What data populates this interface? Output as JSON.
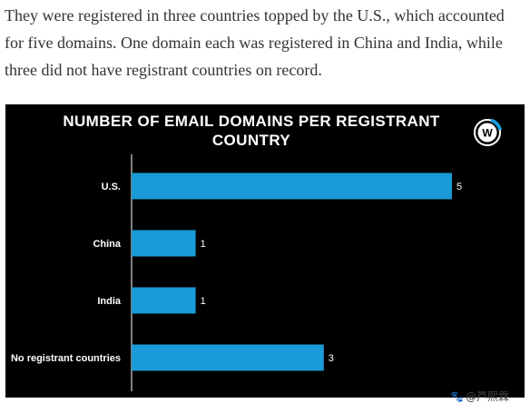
{
  "article": {
    "paragraph": "They were registered in three countries topped by the U.S., which accounted for five domains. One domain each was registered in China and India, while three did not have registrant countries on record."
  },
  "chart": {
    "background": "#000000",
    "bar_color": "#1a9ad6",
    "text_color": "#ffffff",
    "logo_letter": "W",
    "logo_icon": "brand-w-logo-icon"
  },
  "chart_data": {
    "type": "bar",
    "orientation": "horizontal",
    "title": "NUMBER OF EMAIL DOMAINS PER REGISTRANT COUNTRY",
    "categories": [
      "U.S.",
      "China",
      "India",
      "No registrant countries"
    ],
    "values": [
      5,
      1,
      1,
      3
    ],
    "data_labels": [
      "5",
      "1",
      "1",
      "3"
    ],
    "xlim": [
      0,
      5
    ],
    "grid": false,
    "legend": "none"
  },
  "watermark": {
    "icon": "paw-icon",
    "text": "@芦熙霖"
  }
}
